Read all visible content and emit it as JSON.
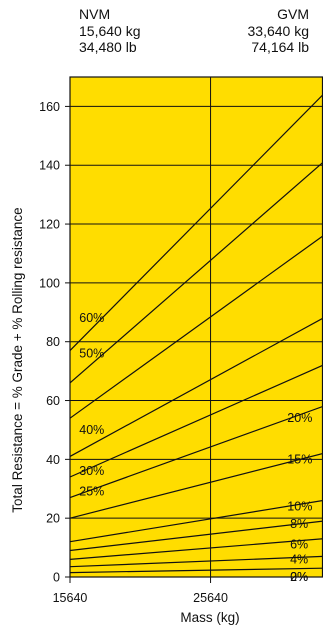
{
  "header": {
    "left": {
      "label": "NVM",
      "kg": "15,640 kg",
      "lb": "34,480 lb"
    },
    "right": {
      "label": "GVM",
      "kg": "33,640 kg",
      "lb": "74,164 lb"
    }
  },
  "chart_data": {
    "type": "line",
    "title": "",
    "xlabel": "Mass (kg)",
    "ylabel": "Total Resistance = % Grade + % Rolling resistance",
    "xlim": [
      15640,
      33640
    ],
    "ylim": [
      0,
      170
    ],
    "x_ticks": [
      "15640",
      "25640"
    ],
    "x_tick_values": [
      15640,
      25640
    ],
    "y_ticks": [
      0,
      20,
      40,
      60,
      80,
      100,
      120,
      140,
      160
    ],
    "grid": true,
    "background_color": "#FFDD00",
    "line_color": "#111111",
    "series": [
      {
        "name": "2%",
        "values": [
          [
            15640,
            1.5
          ],
          [
            33640,
            3.0
          ]
        ]
      },
      {
        "name": "4%",
        "values": [
          [
            15640,
            3.5
          ],
          [
            33640,
            7.0
          ]
        ]
      },
      {
        "name": "6%",
        "values": [
          [
            15640,
            6.0
          ],
          [
            33640,
            13.0
          ]
        ]
      },
      {
        "name": "8%",
        "values": [
          [
            15640,
            9.0
          ],
          [
            33640,
            19.0
          ]
        ]
      },
      {
        "name": "10%",
        "values": [
          [
            15640,
            12.0
          ],
          [
            33640,
            26.0
          ]
        ]
      },
      {
        "name": "15%",
        "values": [
          [
            15640,
            20.0
          ],
          [
            33640,
            42.0
          ]
        ]
      },
      {
        "name": "20%",
        "values": [
          [
            15640,
            27.0
          ],
          [
            33640,
            58.0
          ]
        ]
      },
      {
        "name": "25%",
        "values": [
          [
            15640,
            34.0
          ],
          [
            33640,
            72.0
          ]
        ]
      },
      {
        "name": "30%",
        "values": [
          [
            15640,
            41.0
          ],
          [
            33640,
            88.0
          ]
        ]
      },
      {
        "name": "40%",
        "values": [
          [
            15640,
            54.0
          ],
          [
            33640,
            116.0
          ]
        ]
      },
      {
        "name": "50%",
        "values": [
          [
            15640,
            66.0
          ],
          [
            33640,
            141.0
          ]
        ]
      },
      {
        "name": "60%",
        "values": [
          [
            15640,
            77.0
          ],
          [
            33640,
            164.0
          ]
        ]
      }
    ],
    "labels": [
      {
        "text": "60%",
        "x": 16300,
        "y": 88
      },
      {
        "text": "50%",
        "x": 16300,
        "y": 76
      },
      {
        "text": "40%",
        "x": 16300,
        "y": 50
      },
      {
        "text": "30%",
        "x": 16300,
        "y": 36
      },
      {
        "text": "25%",
        "x": 16300,
        "y": 29
      },
      {
        "text": "20%",
        "x": 31100,
        "y": 54
      },
      {
        "text": "15%",
        "x": 31100,
        "y": 40
      },
      {
        "text": "10%",
        "x": 31100,
        "y": 24
      },
      {
        "text": "8%",
        "x": 31300,
        "y": 18
      },
      {
        "text": "6%",
        "x": 31300,
        "y": 11
      },
      {
        "text": "4%",
        "x": 31300,
        "y": 6
      },
      {
        "text": "2%",
        "x": 31300,
        "y": 0
      },
      {
        "text": "0%",
        "x": 31300,
        "y": 0
      }
    ]
  }
}
